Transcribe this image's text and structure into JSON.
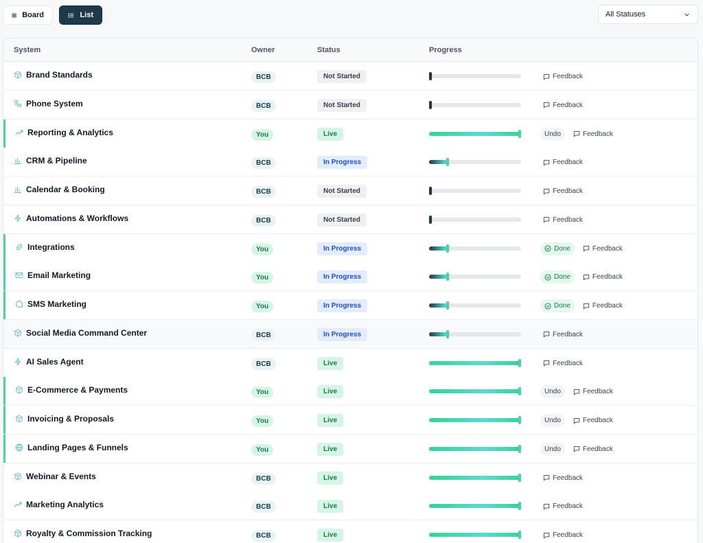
{
  "toolbar": {
    "board_label": "Board",
    "list_label": "List",
    "status_filter": "All Statuses"
  },
  "table": {
    "headers": {
      "system": "System",
      "owner": "Owner",
      "status": "Status",
      "progress": "Progress"
    },
    "feedback_label": "Feedback",
    "undo_label": "Undo",
    "done_label": "Done",
    "rows": [
      {
        "system": "Brand Standards",
        "icon": "box-icon",
        "owner": "BCB",
        "status": "Not Started",
        "progress": 0,
        "accent": false,
        "action": "none"
      },
      {
        "system": "Phone System",
        "icon": "phone-icon",
        "owner": "BCB",
        "status": "Not Started",
        "progress": 0,
        "accent": false,
        "action": "none"
      },
      {
        "system": "Reporting & Analytics",
        "icon": "trending-up-icon",
        "owner": "You",
        "status": "Live",
        "progress": 100,
        "accent": true,
        "action": "undo"
      },
      {
        "system": "CRM & Pipeline",
        "icon": "bar-chart-icon",
        "owner": "BCB",
        "status": "In Progress",
        "progress": 20,
        "accent": false,
        "action": "none"
      },
      {
        "system": "Calendar & Booking",
        "icon": "bar-chart-icon",
        "owner": "BCB",
        "status": "Not Started",
        "progress": 0,
        "accent": false,
        "action": "none"
      },
      {
        "system": "Automations & Workflows",
        "icon": "zap-icon",
        "owner": "BCB",
        "status": "Not Started",
        "progress": 0,
        "accent": false,
        "action": "none"
      },
      {
        "system": "Integrations",
        "icon": "link-icon",
        "owner": "You",
        "status": "In Progress",
        "progress": 20,
        "accent": true,
        "action": "done"
      },
      {
        "system": "Email Marketing",
        "icon": "mail-icon",
        "owner": "You",
        "status": "In Progress",
        "progress": 20,
        "accent": true,
        "action": "done"
      },
      {
        "system": "SMS Marketing",
        "icon": "message-icon",
        "owner": "You",
        "status": "In Progress",
        "progress": 20,
        "accent": true,
        "action": "done"
      },
      {
        "system": "Social Media Command Center",
        "icon": "box-icon",
        "owner": "BCB",
        "status": "In Progress",
        "progress": 20,
        "accent": false,
        "action": "none",
        "highlight": true
      },
      {
        "system": "AI Sales Agent",
        "icon": "zap-icon",
        "owner": "BCB",
        "status": "Live",
        "progress": 100,
        "accent": false,
        "action": "none"
      },
      {
        "system": "E-Commerce & Payments",
        "icon": "box-icon",
        "owner": "You",
        "status": "Live",
        "progress": 100,
        "accent": true,
        "action": "undo"
      },
      {
        "system": "Invoicing & Proposals",
        "icon": "box-icon",
        "owner": "You",
        "status": "Live",
        "progress": 100,
        "accent": true,
        "action": "undo"
      },
      {
        "system": "Landing Pages & Funnels",
        "icon": "globe-icon",
        "owner": "You",
        "status": "Live",
        "progress": 100,
        "accent": true,
        "action": "undo"
      },
      {
        "system": "Webinar & Events",
        "icon": "box-icon",
        "owner": "BCB",
        "status": "Live",
        "progress": 100,
        "accent": false,
        "action": "none"
      },
      {
        "system": "Marketing Analytics",
        "icon": "trending-up-icon",
        "owner": "BCB",
        "status": "Live",
        "progress": 100,
        "accent": false,
        "action": "none"
      },
      {
        "system": "Royalty & Commission Tracking",
        "icon": "box-icon",
        "owner": "BCB",
        "status": "Live",
        "progress": 100,
        "accent": false,
        "action": "none"
      }
    ]
  },
  "colors": {
    "accent": "#4fd1a0",
    "primary": "#1e3a4a",
    "icon": "#5bb8cc"
  }
}
